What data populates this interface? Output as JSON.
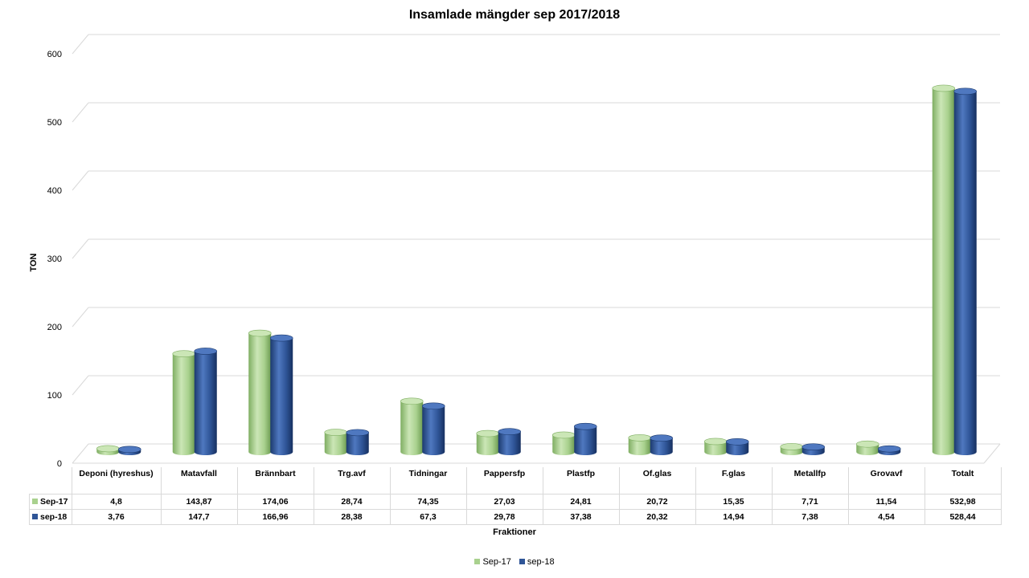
{
  "chart_data": {
    "type": "bar",
    "title": "Insamlade mängder sep 2017/2018",
    "xlabel": "Fraktioner",
    "ylabel": "TON",
    "ylim": [
      0,
      600
    ],
    "yticks": [
      "0",
      "100",
      "200",
      "300",
      "400",
      "500",
      "600"
    ],
    "grid": true,
    "legend_position": "bottom",
    "categories": [
      "Deponi (hyreshus)",
      "Matavfall",
      "Brännbart",
      "Trg.avf",
      "Tidningar",
      "Pappersfp",
      "Plastfp",
      "Of.glas",
      "F.glas",
      "Metallfp",
      "Grovavf",
      "Totalt"
    ],
    "series": [
      {
        "name": "Sep-17",
        "color": "#a9d18e",
        "values": [
          4.8,
          143.87,
          174.06,
          28.74,
          74.35,
          27.03,
          24.81,
          20.72,
          15.35,
          7.71,
          11.54,
          532.98
        ],
        "labels": [
          "4,8",
          "143,87",
          "174,06",
          "28,74",
          "74,35",
          "27,03",
          "24,81",
          "20,72",
          "15,35",
          "7,71",
          "11,54",
          "532,98"
        ]
      },
      {
        "name": "sep-18",
        "color": "#2f5597",
        "values": [
          3.76,
          147.7,
          166.96,
          28.38,
          67.3,
          29.78,
          37.38,
          20.32,
          14.94,
          7.38,
          4.54,
          528.44
        ],
        "labels": [
          "3,76",
          "147,7",
          "166,96",
          "28,38",
          "67,3",
          "29,78",
          "37,38",
          "20,32",
          "14,94",
          "7,38",
          "4,54",
          "528,44"
        ]
      }
    ]
  }
}
